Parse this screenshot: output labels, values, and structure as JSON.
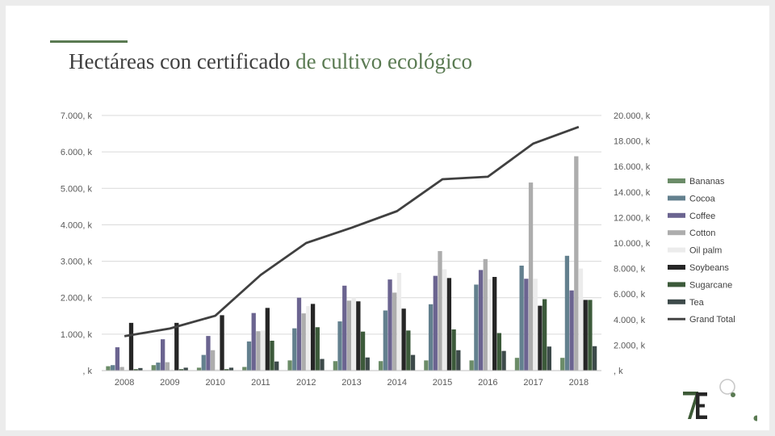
{
  "slide": {
    "title_part1": "Hectáreas con certificado",
    "title_part2": "de cultivo ecológico"
  },
  "colors": {
    "accent": "#5a7a52",
    "text": "#404040",
    "grid": "#d9d9d9",
    "line": "#404040"
  },
  "logo": {
    "name": "7E-logo"
  },
  "chart_data": {
    "type": "bar",
    "title": "",
    "xlabel": "",
    "ylabel": "",
    "categories": [
      "2008",
      "2009",
      "2010",
      "2011",
      "2012",
      "2013",
      "2014",
      "2015",
      "2016",
      "2017",
      "2018"
    ],
    "primary_axis": {
      "ylim": [
        0,
        7000
      ],
      "ticks": [
        0,
        1000,
        2000,
        3000,
        4000,
        5000,
        6000,
        7000
      ],
      "tick_labels": [
        ", k",
        "1.000, k",
        "2.000, k",
        "3.000, k",
        "4.000, k",
        "5.000, k",
        "6.000, k",
        "7.000, k"
      ]
    },
    "secondary_axis": {
      "ylim": [
        0,
        20000
      ],
      "ticks": [
        0,
        2000,
        4000,
        6000,
        8000,
        10000,
        12000,
        14000,
        16000,
        18000,
        20000
      ],
      "tick_labels": [
        ", k",
        "2.000, k",
        "4.000, k",
        "6.000, k",
        "8.000, k",
        "10.000, k",
        "12.000, k",
        "14.000, k",
        "16.000, k",
        "18.000, k",
        "20.000, k"
      ]
    },
    "grid": true,
    "legend_position": "right",
    "series": [
      {
        "name": "Bananas",
        "color": "#6b8c68",
        "values": [
          120,
          150,
          80,
          100,
          280,
          260,
          260,
          280,
          280,
          350,
          350
        ]
      },
      {
        "name": "Cocoa",
        "color": "#63808e",
        "values": [
          150,
          220,
          430,
          800,
          1160,
          1350,
          1650,
          1820,
          2360,
          2880,
          3150
        ]
      },
      {
        "name": "Coffee",
        "color": "#6b6490",
        "values": [
          640,
          860,
          950,
          1580,
          2000,
          2330,
          2500,
          2600,
          2760,
          2520,
          2200
        ]
      },
      {
        "name": "Cotton",
        "color": "#adadad",
        "values": [
          100,
          230,
          560,
          1080,
          1570,
          1920,
          2140,
          3280,
          3060,
          5160,
          5880
        ]
      },
      {
        "name": "Oil palm",
        "color": "#ececec",
        "values": [
          20,
          30,
          40,
          1100,
          1770,
          2000,
          2680,
          2780,
          2510,
          2520,
          2800
        ]
      },
      {
        "name": "Soybeans",
        "color": "#262626",
        "values": [
          1310,
          1310,
          1520,
          1720,
          1830,
          1900,
          1700,
          2540,
          2570,
          1780,
          1940
        ]
      },
      {
        "name": "Sugarcane",
        "color": "#3c5a3a",
        "values": [
          40,
          40,
          40,
          820,
          1190,
          1070,
          1100,
          1130,
          1030,
          1960,
          1940
        ]
      },
      {
        "name": "Tea",
        "color": "#3d4a4a",
        "values": [
          70,
          80,
          80,
          250,
          320,
          360,
          430,
          560,
          540,
          660,
          670
        ]
      }
    ],
    "line_series": {
      "name": "Grand Total",
      "axis": "secondary",
      "color": "#404040",
      "values": [
        2700,
        3300,
        4300,
        7500,
        10000,
        11200,
        12500,
        15000,
        15200,
        17800,
        19100
      ]
    }
  }
}
